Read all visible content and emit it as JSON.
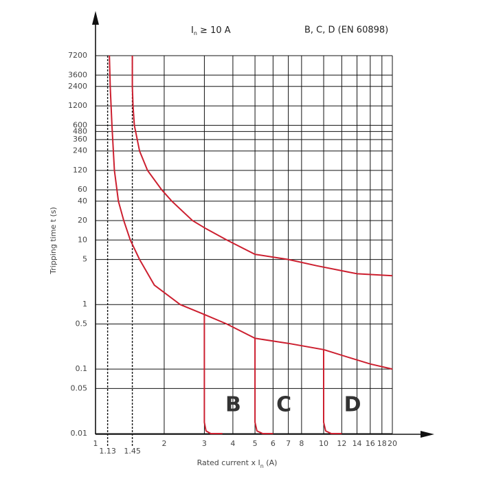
{
  "chart_data": {
    "type": "line",
    "title_left": [
      "I",
      "n",
      " ≥ 10 A"
    ],
    "title_right": "B, C, D (EN 60898)",
    "xlabel": [
      "Rated current  x  I",
      "n",
      " (A)"
    ],
    "ylabel": "Tripping time  t (s)",
    "xscale": "log",
    "yscale": "log",
    "grid": true,
    "xlim": [
      1,
      20
    ],
    "ylim": [
      0.01,
      7200
    ],
    "xticks": [
      1,
      2,
      3,
      4,
      5,
      6,
      7,
      8,
      10,
      12,
      14,
      16,
      18,
      20
    ],
    "xmarks": [
      1.13,
      1.45
    ],
    "yticks": [
      0.01,
      0.05,
      0.1,
      0.5,
      1,
      5,
      10,
      20,
      40,
      60,
      120,
      240,
      360,
      480,
      600,
      1200,
      2400,
      3600,
      7200
    ],
    "curves": [
      {
        "color": "#cc1f2f",
        "x": [
          1.15,
          1.16,
          1.18,
          1.21,
          1.26,
          1.33,
          1.42,
          1.56,
          1.81,
          2.35,
          3,
          3.76,
          5,
          7,
          10,
          13,
          16,
          20
        ],
        "values": [
          7200,
          2400,
          600,
          120,
          40,
          20,
          10,
          5,
          2,
          1,
          0.7,
          0.5,
          0.3,
          0.25,
          0.2,
          0.15,
          0.12,
          0.1
        ]
      },
      {
        "color": "#cc1f2f",
        "x": [
          1.45,
          1.45,
          1.46,
          1.48,
          1.56,
          1.69,
          1.95,
          2.16,
          2.66,
          3.05,
          3.76,
          5,
          7,
          9.3,
          14,
          20
        ],
        "values": [
          7200,
          2400,
          1200,
          600,
          240,
          120,
          60,
          40,
          20,
          15,
          10,
          6,
          5,
          4,
          3,
          2.8
        ]
      }
    ],
    "series": [
      {
        "name": "B",
        "color": "#cc1f2f",
        "x": [
          3,
          3,
          3.05,
          3.2,
          3.6
        ],
        "values": [
          0.7,
          0.015,
          0.011,
          0.01,
          0.01
        ]
      },
      {
        "name": "C",
        "color": "#cc1f2f",
        "x": [
          5,
          5,
          5.1,
          5.4,
          6
        ],
        "values": [
          0.3,
          0.015,
          0.011,
          0.01,
          0.01
        ]
      },
      {
        "name": "D",
        "color": "#cc1f2f",
        "x": [
          10,
          10,
          10.2,
          10.8,
          12
        ],
        "values": [
          0.2,
          0.015,
          0.011,
          0.01,
          0.01
        ]
      }
    ]
  }
}
